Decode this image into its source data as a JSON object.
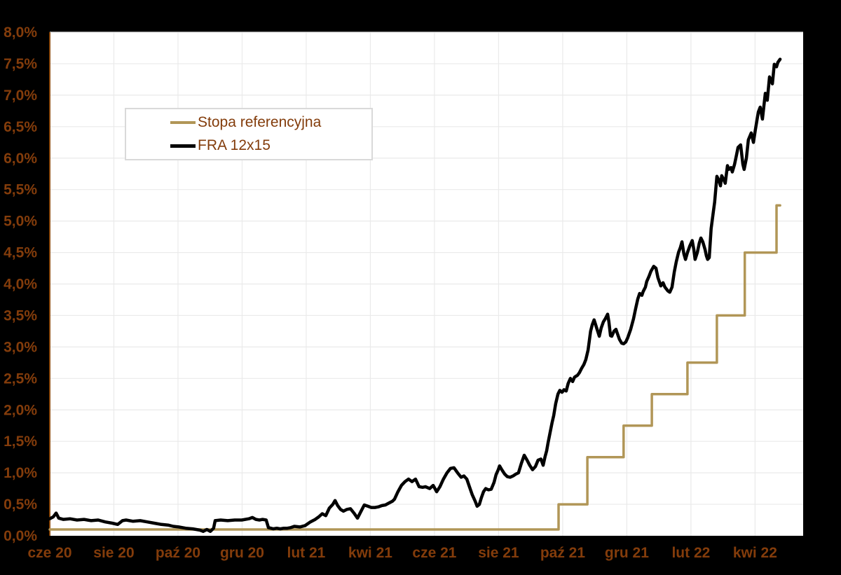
{
  "figure": {
    "background_color": "#000000",
    "plot_background_color": "#FFFFFF",
    "gridline_color": "#EAEAEA",
    "axis_line_color": "#8B4A10",
    "tick_label_color": "#833C0B",
    "legend_border_color": "#D9D9D9"
  },
  "legend": {
    "items": [
      {
        "label": "Stopa referencyjna",
        "color": "#B19657"
      },
      {
        "label": "FRA 12x15",
        "color": "#000000"
      }
    ]
  },
  "chart_data": {
    "type": "line",
    "title": "",
    "x_axis": {
      "tick_labels": [
        "cze 20",
        "sie 20",
        "paź 20",
        "gru 20",
        "lut 21",
        "kwi 21",
        "cze 21",
        "sie 21",
        "paź 21",
        "gru 21",
        "lut 22",
        "kwi 22"
      ],
      "tick_interval_months": 2,
      "months_span": 23.5,
      "grid": true
    },
    "y_axis": {
      "tick_labels": [
        "8,0%",
        "7,5%",
        "7,0%",
        "6,5%",
        "6,0%",
        "5,5%",
        "5,0%",
        "4,5%",
        "4,0%",
        "3,5%",
        "3,0%",
        "2,5%",
        "2,0%",
        "1,5%",
        "1,0%",
        "0,5%",
        "0,0%"
      ],
      "min": 0,
      "max": 8,
      "step": 0.5,
      "grid": true
    },
    "series": [
      {
        "name": "Stopa referencyjna",
        "color": "#B19657",
        "style": "step",
        "stroke_width": 3.5,
        "points": [
          [
            0,
            0.1
          ],
          [
            15.87,
            0.5
          ],
          [
            16.77,
            1.25
          ],
          [
            17.9,
            1.75
          ],
          [
            18.78,
            2.25
          ],
          [
            19.89,
            2.75
          ],
          [
            20.81,
            3.5
          ],
          [
            21.68,
            4.5
          ],
          [
            22.67,
            5.25
          ],
          [
            22.78,
            5.25
          ]
        ]
      },
      {
        "name": "FRA 12x15",
        "color": "#000000",
        "style": "line",
        "stroke_width": 4.5,
        "points": [
          [
            0,
            0.27
          ],
          [
            0.11,
            0.3
          ],
          [
            0.2,
            0.36
          ],
          [
            0.28,
            0.28
          ],
          [
            0.42,
            0.26
          ],
          [
            0.63,
            0.27
          ],
          [
            0.85,
            0.25
          ],
          [
            1.07,
            0.26
          ],
          [
            1.29,
            0.24
          ],
          [
            1.51,
            0.25
          ],
          [
            1.73,
            0.22
          ],
          [
            1.95,
            0.2
          ],
          [
            2.12,
            0.18
          ],
          [
            2.27,
            0.24
          ],
          [
            2.38,
            0.25
          ],
          [
            2.6,
            0.23
          ],
          [
            2.82,
            0.24
          ],
          [
            3.04,
            0.22
          ],
          [
            3.26,
            0.2
          ],
          [
            3.48,
            0.18
          ],
          [
            3.69,
            0.17
          ],
          [
            3.85,
            0.15
          ],
          [
            4.02,
            0.14
          ],
          [
            4.24,
            0.12
          ],
          [
            4.46,
            0.11
          ],
          [
            4.68,
            0.09
          ],
          [
            4.79,
            0.07
          ],
          [
            4.9,
            0.1
          ],
          [
            5.01,
            0.07
          ],
          [
            5.11,
            0.12
          ],
          [
            5.16,
            0.24
          ],
          [
            5.33,
            0.25
          ],
          [
            5.55,
            0.24
          ],
          [
            5.77,
            0.25
          ],
          [
            5.99,
            0.25
          ],
          [
            6.21,
            0.27
          ],
          [
            6.32,
            0.29
          ],
          [
            6.43,
            0.26
          ],
          [
            6.54,
            0.25
          ],
          [
            6.64,
            0.26
          ],
          [
            6.75,
            0.25
          ],
          [
            6.82,
            0.13
          ],
          [
            6.97,
            0.11
          ],
          [
            7.08,
            0.12
          ],
          [
            7.19,
            0.11
          ],
          [
            7.3,
            0.12
          ],
          [
            7.41,
            0.12
          ],
          [
            7.52,
            0.13
          ],
          [
            7.63,
            0.15
          ],
          [
            7.8,
            0.14
          ],
          [
            7.96,
            0.16
          ],
          [
            8.13,
            0.22
          ],
          [
            8.28,
            0.26
          ],
          [
            8.39,
            0.3
          ],
          [
            8.5,
            0.35
          ],
          [
            8.61,
            0.32
          ],
          [
            8.72,
            0.44
          ],
          [
            8.83,
            0.5
          ],
          [
            8.9,
            0.56
          ],
          [
            8.98,
            0.48
          ],
          [
            9.07,
            0.42
          ],
          [
            9.16,
            0.39
          ],
          [
            9.27,
            0.42
          ],
          [
            9.38,
            0.43
          ],
          [
            9.49,
            0.36
          ],
          [
            9.6,
            0.28
          ],
          [
            9.7,
            0.38
          ],
          [
            9.81,
            0.49
          ],
          [
            9.92,
            0.47
          ],
          [
            10.03,
            0.45
          ],
          [
            10.14,
            0.45
          ],
          [
            10.25,
            0.46
          ],
          [
            10.36,
            0.48
          ],
          [
            10.47,
            0.49
          ],
          [
            10.58,
            0.52
          ],
          [
            10.69,
            0.55
          ],
          [
            10.75,
            0.58
          ],
          [
            10.86,
            0.7
          ],
          [
            10.97,
            0.8
          ],
          [
            11.08,
            0.86
          ],
          [
            11.19,
            0.9
          ],
          [
            11.3,
            0.86
          ],
          [
            11.41,
            0.9
          ],
          [
            11.52,
            0.78
          ],
          [
            11.63,
            0.77
          ],
          [
            11.72,
            0.78
          ],
          [
            11.85,
            0.75
          ],
          [
            11.96,
            0.8
          ],
          [
            12.07,
            0.7
          ],
          [
            12.17,
            0.78
          ],
          [
            12.28,
            0.9
          ],
          [
            12.39,
            1.0
          ],
          [
            12.5,
            1.07
          ],
          [
            12.61,
            1.08
          ],
          [
            12.72,
            1.0
          ],
          [
            12.83,
            0.93
          ],
          [
            12.92,
            0.95
          ],
          [
            13.01,
            0.9
          ],
          [
            13.09,
            0.78
          ],
          [
            13.18,
            0.65
          ],
          [
            13.27,
            0.55
          ],
          [
            13.33,
            0.47
          ],
          [
            13.4,
            0.5
          ],
          [
            13.46,
            0.6
          ],
          [
            13.53,
            0.7
          ],
          [
            13.6,
            0.75
          ],
          [
            13.68,
            0.73
          ],
          [
            13.77,
            0.74
          ],
          [
            13.86,
            0.85
          ],
          [
            13.92,
            0.97
          ],
          [
            13.99,
            1.05
          ],
          [
            14.03,
            1.11
          ],
          [
            14.1,
            1.05
          ],
          [
            14.19,
            0.98
          ],
          [
            14.27,
            0.94
          ],
          [
            14.36,
            0.93
          ],
          [
            14.45,
            0.95
          ],
          [
            14.54,
            0.98
          ],
          [
            14.62,
            1.0
          ],
          [
            14.71,
            1.15
          ],
          [
            14.8,
            1.28
          ],
          [
            14.89,
            1.2
          ],
          [
            14.97,
            1.12
          ],
          [
            15.06,
            1.05
          ],
          [
            15.15,
            1.1
          ],
          [
            15.23,
            1.2
          ],
          [
            15.32,
            1.22
          ],
          [
            15.39,
            1.12
          ],
          [
            15.45,
            1.26
          ],
          [
            15.5,
            1.35
          ],
          [
            15.54,
            1.47
          ],
          [
            15.61,
            1.65
          ],
          [
            15.67,
            1.8
          ],
          [
            15.72,
            1.91
          ],
          [
            15.78,
            2.1
          ],
          [
            15.85,
            2.25
          ],
          [
            15.91,
            2.31
          ],
          [
            15.98,
            2.28
          ],
          [
            16.04,
            2.32
          ],
          [
            16.11,
            2.3
          ],
          [
            16.17,
            2.42
          ],
          [
            16.24,
            2.5
          ],
          [
            16.31,
            2.45
          ],
          [
            16.37,
            2.52
          ],
          [
            16.46,
            2.55
          ],
          [
            16.52,
            2.59
          ],
          [
            16.59,
            2.66
          ],
          [
            16.66,
            2.72
          ],
          [
            16.72,
            2.8
          ],
          [
            16.79,
            2.95
          ],
          [
            16.83,
            3.1
          ],
          [
            16.87,
            3.25
          ],
          [
            16.92,
            3.35
          ],
          [
            16.98,
            3.43
          ],
          [
            17.03,
            3.35
          ],
          [
            17.09,
            3.25
          ],
          [
            17.14,
            3.17
          ],
          [
            17.2,
            3.3
          ],
          [
            17.27,
            3.4
          ],
          [
            17.33,
            3.45
          ],
          [
            17.4,
            3.52
          ],
          [
            17.44,
            3.4
          ],
          [
            17.49,
            3.18
          ],
          [
            17.53,
            3.17
          ],
          [
            17.6,
            3.25
          ],
          [
            17.66,
            3.28
          ],
          [
            17.7,
            3.22
          ],
          [
            17.77,
            3.12
          ],
          [
            17.84,
            3.06
          ],
          [
            17.9,
            3.05
          ],
          [
            17.97,
            3.08
          ],
          [
            18.03,
            3.15
          ],
          [
            18.12,
            3.28
          ],
          [
            18.21,
            3.45
          ],
          [
            18.27,
            3.6
          ],
          [
            18.34,
            3.76
          ],
          [
            18.4,
            3.85
          ],
          [
            18.47,
            3.82
          ],
          [
            18.51,
            3.88
          ],
          [
            18.58,
            3.95
          ],
          [
            18.62,
            4.04
          ],
          [
            18.69,
            4.12
          ],
          [
            18.75,
            4.2
          ],
          [
            18.84,
            4.28
          ],
          [
            18.91,
            4.25
          ],
          [
            18.97,
            4.1
          ],
          [
            19.06,
            3.97
          ],
          [
            19.13,
            4.02
          ],
          [
            19.19,
            3.95
          ],
          [
            19.28,
            3.89
          ],
          [
            19.34,
            3.87
          ],
          [
            19.41,
            3.95
          ],
          [
            19.48,
            4.19
          ],
          [
            19.54,
            4.35
          ],
          [
            19.61,
            4.5
          ],
          [
            19.67,
            4.58
          ],
          [
            19.72,
            4.67
          ],
          [
            19.78,
            4.48
          ],
          [
            19.83,
            4.39
          ],
          [
            19.89,
            4.5
          ],
          [
            19.96,
            4.6
          ],
          [
            20.04,
            4.69
          ],
          [
            20.09,
            4.55
          ],
          [
            20.13,
            4.39
          ],
          [
            20.2,
            4.5
          ],
          [
            20.26,
            4.65
          ],
          [
            20.31,
            4.73
          ],
          [
            20.37,
            4.67
          ],
          [
            20.44,
            4.55
          ],
          [
            20.48,
            4.45
          ],
          [
            20.52,
            4.39
          ],
          [
            20.57,
            4.42
          ],
          [
            20.63,
            4.88
          ],
          [
            20.7,
            5.15
          ],
          [
            20.74,
            5.3
          ],
          [
            20.81,
            5.71
          ],
          [
            20.87,
            5.65
          ],
          [
            20.92,
            5.56
          ],
          [
            20.96,
            5.72
          ],
          [
            21.03,
            5.65
          ],
          [
            21.07,
            5.6
          ],
          [
            21.14,
            5.88
          ],
          [
            21.18,
            5.82
          ],
          [
            21.25,
            5.85
          ],
          [
            21.29,
            5.78
          ],
          [
            21.36,
            5.9
          ],
          [
            21.42,
            6.05
          ],
          [
            21.47,
            6.17
          ],
          [
            21.55,
            6.21
          ],
          [
            21.62,
            5.9
          ],
          [
            21.66,
            5.82
          ],
          [
            21.73,
            6.0
          ],
          [
            21.79,
            6.29
          ],
          [
            21.88,
            6.4
          ],
          [
            21.95,
            6.25
          ],
          [
            22.01,
            6.45
          ],
          [
            22.1,
            6.73
          ],
          [
            22.16,
            6.81
          ],
          [
            22.23,
            6.62
          ],
          [
            22.32,
            7.03
          ],
          [
            22.38,
            6.92
          ],
          [
            22.45,
            7.29
          ],
          [
            22.54,
            7.18
          ],
          [
            22.6,
            7.49
          ],
          [
            22.67,
            7.45
          ],
          [
            22.71,
            7.52
          ],
          [
            22.78,
            7.57
          ]
        ]
      }
    ]
  }
}
